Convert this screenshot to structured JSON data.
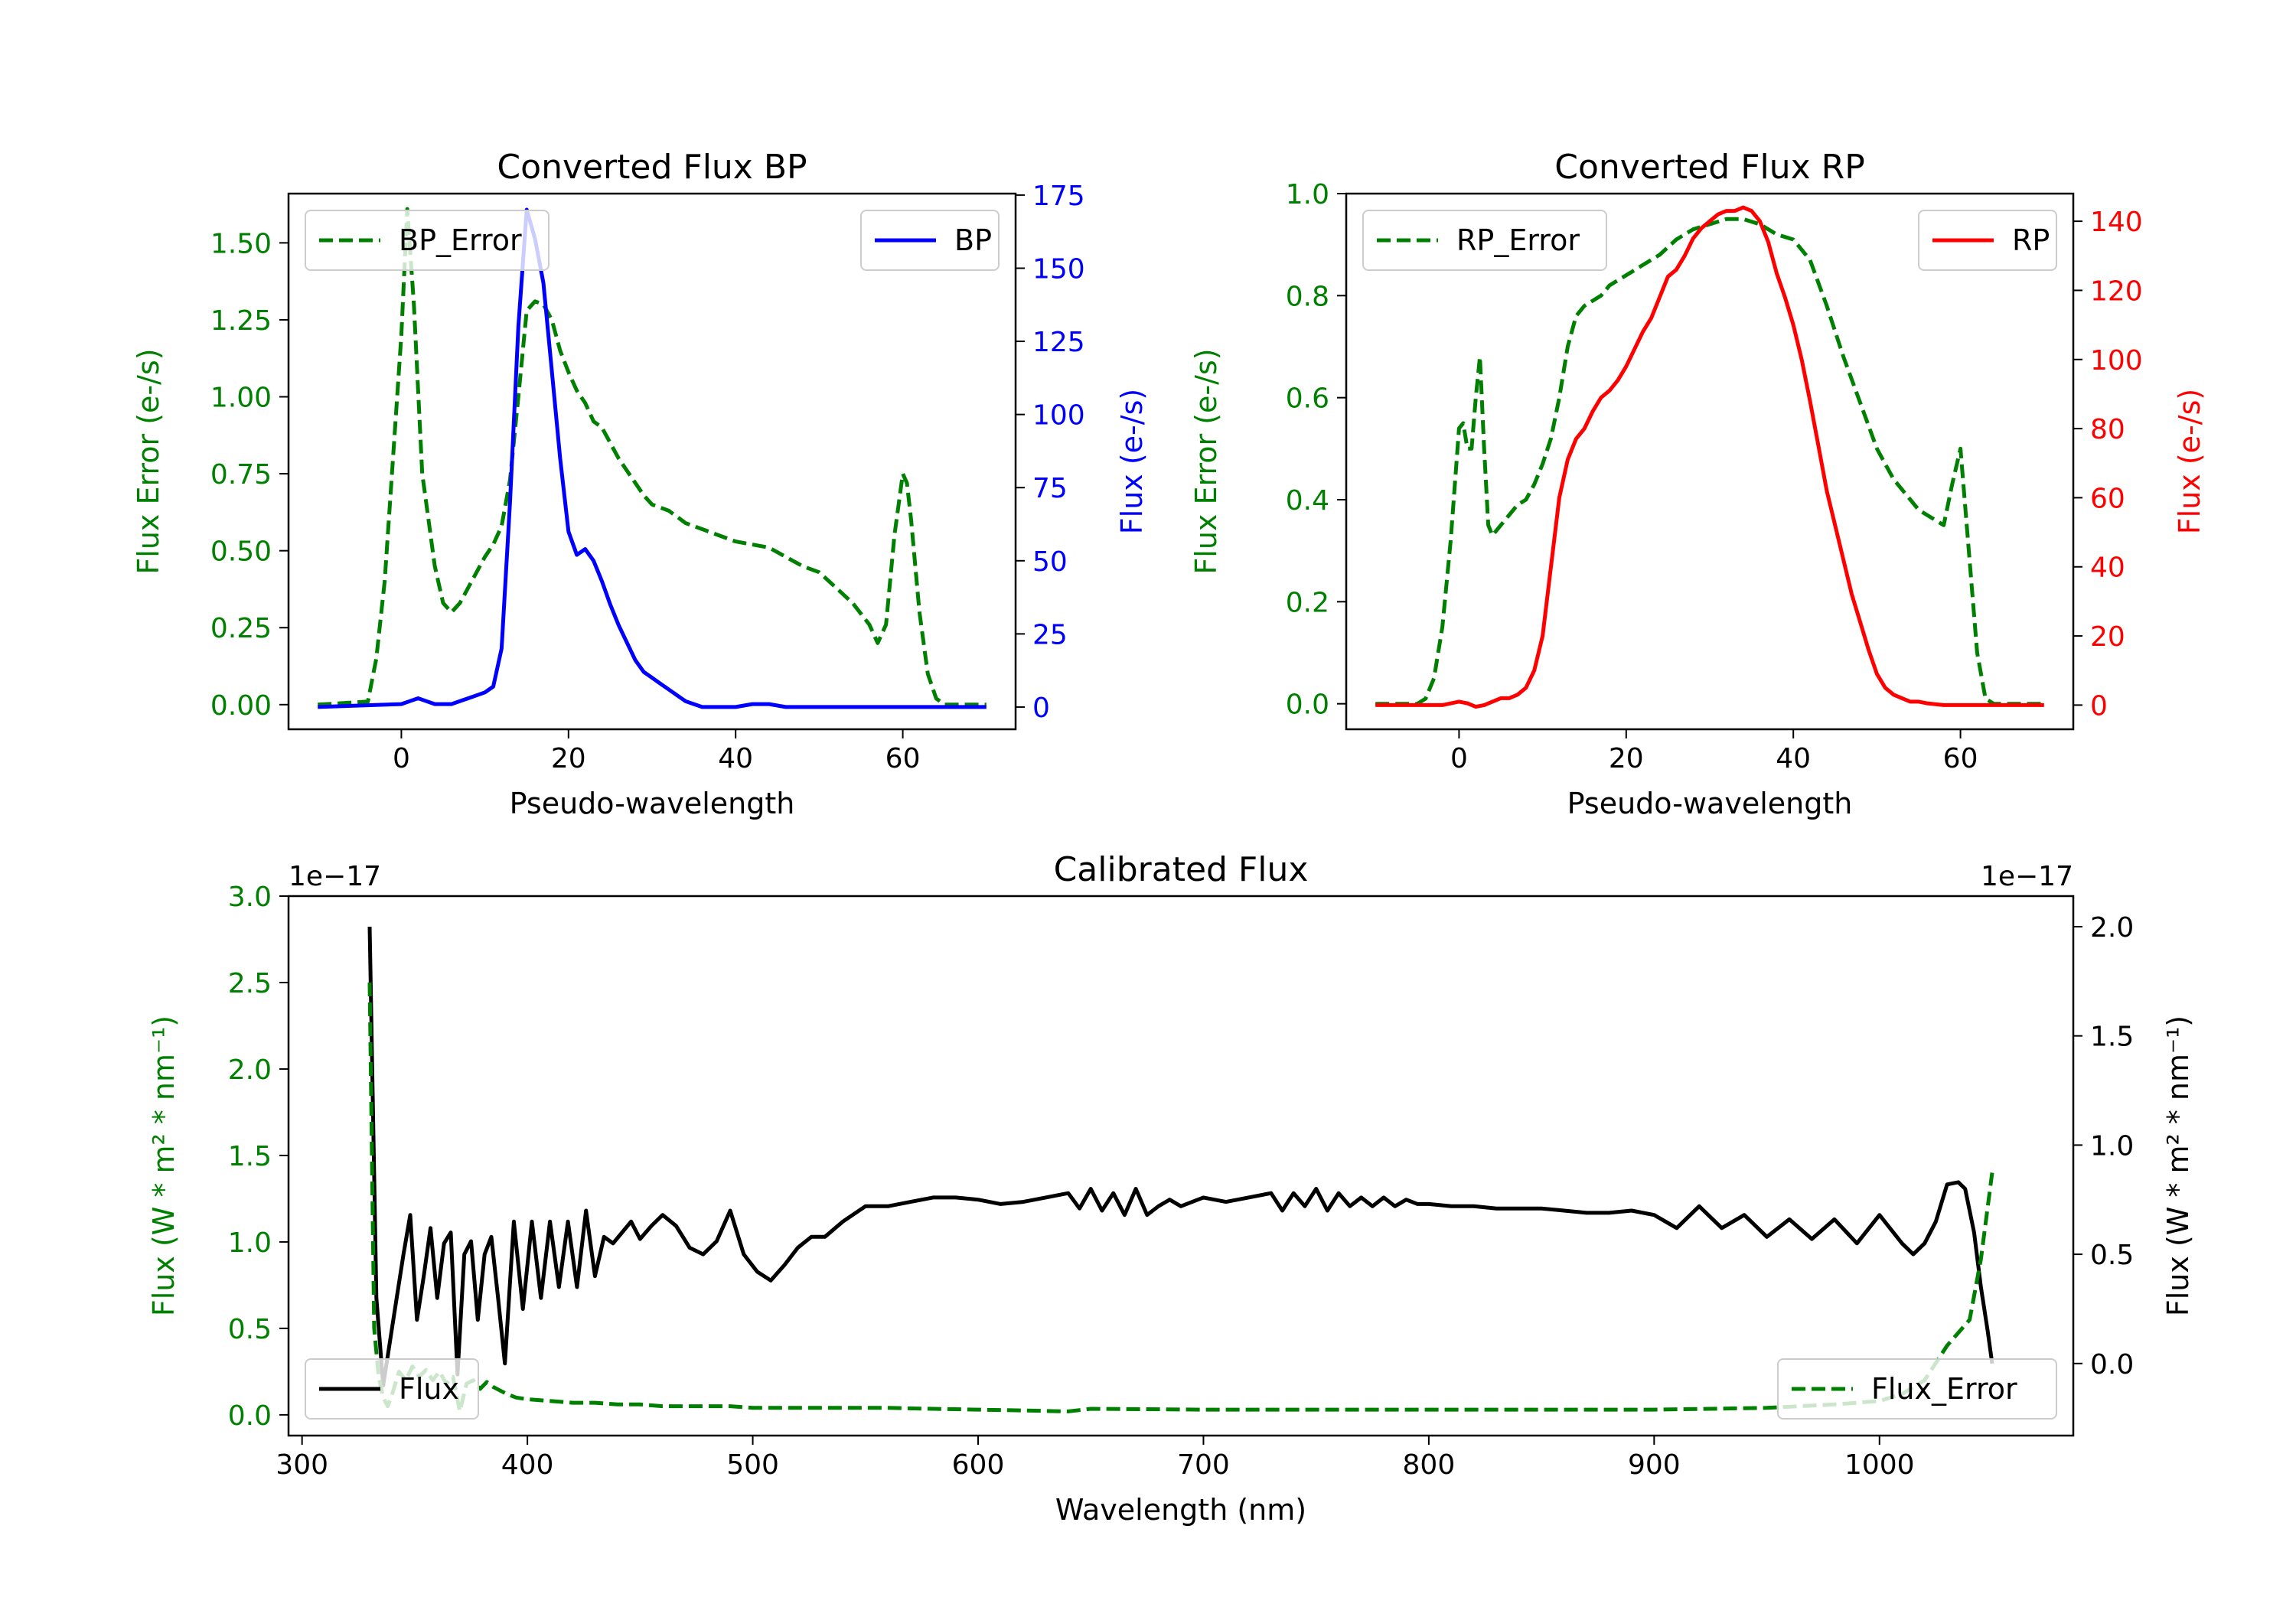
{
  "colors": {
    "error": "#008000",
    "bp": "#0000ff",
    "rp": "#ff0000",
    "flux": "#000000",
    "axis": "#000000"
  },
  "chart_data": [
    {
      "id": "bp",
      "type": "line",
      "title": "Converted Flux BP",
      "xlabel": "Pseudo-wavelength",
      "ylabel_left": "Flux Error (e-/s)",
      "ylabel_right": "Flux (e-/s)",
      "xlim": [
        -13.5,
        73.5
      ],
      "ylim_left": [
        -0.08,
        1.66
      ],
      "ylim_right": [
        -7.6,
        175.5
      ],
      "xticks": [
        0,
        20,
        40,
        60
      ],
      "xtick_labels": [
        "0",
        "20",
        "40",
        "60"
      ],
      "yticks_left": [
        0,
        0.25,
        0.5,
        0.75,
        1.0,
        1.25,
        1.5
      ],
      "ytick_labels_left": [
        "0.00",
        "0.25",
        "0.50",
        "0.75",
        "1.00",
        "1.25",
        "1.50"
      ],
      "yticks_right": [
        0,
        25,
        50,
        75,
        100,
        125,
        150,
        175
      ],
      "ytick_labels_right": [
        "0",
        "25",
        "50",
        "75",
        "100",
        "125",
        "150",
        "175"
      ],
      "series": [
        {
          "name": "BP_Error",
          "axis": "left",
          "style": "dashed",
          "color": "#008000",
          "x": [
            -10,
            -4,
            -3,
            -2,
            -1,
            0,
            0.7,
            1.5,
            2.5,
            3,
            4,
            5,
            6,
            7,
            8,
            9,
            10,
            11,
            12,
            13,
            14,
            15,
            16,
            17,
            18,
            19,
            20,
            21,
            22,
            23,
            24,
            25,
            26,
            27,
            28,
            29,
            30,
            31,
            32,
            33,
            34,
            35,
            36,
            38,
            40,
            42,
            44,
            46,
            48,
            50,
            52,
            54,
            56,
            57,
            58,
            59,
            60,
            60.5,
            61,
            62,
            63,
            64,
            65,
            70
          ],
          "values": [
            0,
            0.01,
            0.15,
            0.4,
            0.8,
            1.2,
            1.61,
            1.3,
            0.75,
            0.65,
            0.45,
            0.33,
            0.3,
            0.33,
            0.38,
            0.43,
            0.48,
            0.52,
            0.58,
            0.73,
            1.0,
            1.28,
            1.31,
            1.3,
            1.25,
            1.15,
            1.08,
            1.02,
            0.98,
            0.92,
            0.9,
            0.85,
            0.8,
            0.76,
            0.72,
            0.68,
            0.65,
            0.64,
            0.63,
            0.61,
            0.59,
            0.58,
            0.57,
            0.55,
            0.53,
            0.52,
            0.51,
            0.48,
            0.45,
            0.43,
            0.38,
            0.33,
            0.26,
            0.2,
            0.26,
            0.55,
            0.75,
            0.72,
            0.6,
            0.3,
            0.1,
            0.02,
            0.0,
            0.0
          ]
        },
        {
          "name": "BP",
          "axis": "right",
          "style": "solid",
          "color": "#0000ff",
          "x": [
            -10,
            0,
            1,
            2,
            3,
            4,
            5,
            6,
            7,
            8,
            9,
            10,
            11,
            12,
            13,
            14,
            15,
            16,
            17,
            18,
            19,
            20,
            21,
            22,
            23,
            24,
            25,
            26,
            27,
            28,
            29,
            30,
            31,
            32,
            33,
            34,
            35,
            36,
            38,
            40,
            42,
            44,
            46,
            50,
            55,
            60,
            65,
            70
          ],
          "values": [
            0,
            1,
            2,
            3,
            2,
            1,
            1,
            1,
            2,
            3,
            4,
            5,
            7,
            20,
            70,
            130,
            170,
            160,
            145,
            115,
            85,
            60,
            52,
            54,
            50,
            43,
            35,
            28,
            22,
            16,
            12,
            10,
            8,
            6,
            4,
            2,
            1,
            0,
            0,
            0,
            1,
            1,
            0,
            0,
            0,
            0,
            0,
            0
          ]
        }
      ],
      "legend": [
        {
          "label": "BP_Error",
          "placement": "upper-left"
        },
        {
          "label": "BP",
          "placement": "upper-right"
        }
      ]
    },
    {
      "id": "rp",
      "type": "line",
      "title": "Converted Flux RP",
      "xlabel": "Pseudo-wavelength",
      "ylabel_left": "Flux Error (e-/s)",
      "ylabel_right": "Flux (e-/s)",
      "xlim": [
        -13.5,
        73.5
      ],
      "ylim_left": [
        -0.05,
        1.0
      ],
      "ylim_right": [
        -7.0,
        148.0
      ],
      "xticks": [
        0,
        20,
        40,
        60
      ],
      "xtick_labels": [
        "0",
        "20",
        "40",
        "60"
      ],
      "yticks_left": [
        0,
        0.2,
        0.4,
        0.6,
        0.8,
        1.0
      ],
      "ytick_labels_left": [
        "0.0",
        "0.2",
        "0.4",
        "0.6",
        "0.8",
        "1.0"
      ],
      "yticks_right": [
        0,
        20,
        40,
        60,
        80,
        100,
        120,
        140
      ],
      "ytick_labels_right": [
        "0",
        "20",
        "40",
        "60",
        "80",
        "100",
        "120",
        "140"
      ],
      "series": [
        {
          "name": "RP_Error",
          "axis": "left",
          "style": "dashed",
          "color": "#008000",
          "x": [
            -10,
            -5,
            -4,
            -3,
            -2,
            -1,
            0,
            0.5,
            1,
            1.5,
            2,
            2.5,
            3,
            3.5,
            4,
            5,
            6,
            7,
            8,
            9,
            10,
            11,
            12,
            13,
            14,
            15,
            16,
            17,
            18,
            19,
            20,
            22,
            24,
            26,
            28,
            30,
            32,
            34,
            36,
            38,
            40,
            42,
            44,
            46,
            48,
            50,
            52,
            54,
            55,
            56,
            57,
            58,
            59,
            60,
            61,
            62,
            63,
            64,
            65,
            70
          ],
          "values": [
            0,
            0,
            0.01,
            0.05,
            0.15,
            0.32,
            0.54,
            0.55,
            0.5,
            0.5,
            0.6,
            0.68,
            0.5,
            0.35,
            0.33,
            0.35,
            0.37,
            0.39,
            0.4,
            0.43,
            0.47,
            0.52,
            0.6,
            0.7,
            0.76,
            0.78,
            0.79,
            0.8,
            0.82,
            0.83,
            0.84,
            0.86,
            0.88,
            0.91,
            0.93,
            0.94,
            0.95,
            0.95,
            0.94,
            0.92,
            0.91,
            0.87,
            0.78,
            0.68,
            0.59,
            0.5,
            0.44,
            0.4,
            0.38,
            0.37,
            0.36,
            0.35,
            0.43,
            0.5,
            0.3,
            0.1,
            0.01,
            0.0,
            0.0,
            0.0
          ]
        },
        {
          "name": "RP",
          "axis": "right",
          "style": "solid",
          "color": "#ff0000",
          "x": [
            -10,
            -2,
            0,
            1,
            2,
            3,
            4,
            5,
            6,
            7,
            8,
            9,
            10,
            11,
            12,
            13,
            14,
            15,
            16,
            17,
            18,
            19,
            20,
            21,
            22,
            23,
            24,
            25,
            26,
            27,
            28,
            29,
            30,
            31,
            32,
            33,
            34,
            35,
            36,
            37,
            38,
            39,
            40,
            41,
            42,
            43,
            44,
            45,
            46,
            47,
            48,
            49,
            50,
            51,
            52,
            53,
            54,
            55,
            56,
            58,
            60,
            62,
            65,
            70
          ],
          "values": [
            0,
            0,
            1,
            0.5,
            -0.5,
            0,
            1,
            2,
            2,
            3,
            5,
            10,
            20,
            40,
            60,
            71,
            77,
            80,
            85,
            89,
            91,
            94,
            98,
            103,
            108,
            112,
            118,
            124,
            126,
            130,
            135,
            138,
            140,
            142,
            143,
            143,
            144,
            143,
            140,
            134,
            125,
            118,
            110,
            100,
            88,
            75,
            62,
            52,
            42,
            32,
            24,
            16,
            9,
            5,
            3,
            2,
            1,
            1,
            0.5,
            0,
            0,
            0,
            0,
            0
          ]
        }
      ],
      "legend": [
        {
          "label": "RP_Error",
          "placement": "upper-left"
        },
        {
          "label": "RP",
          "placement": "upper-right"
        }
      ]
    },
    {
      "id": "calibrated",
      "type": "line",
      "title": "Calibrated Flux",
      "xlabel": "Wavelength (nm)",
      "ylabel_left": "Flux (W * m² * nm⁻¹)",
      "ylabel_right": "Flux (W * m² * nm⁻¹)",
      "offset_left": "1e−17",
      "offset_right": "1e−17",
      "xlim": [
        294,
        1086
      ],
      "ylim_left": [
        -0.12,
        3.0
      ],
      "ylim_right": [
        -0.33,
        2.14
      ],
      "xticks": [
        300,
        400,
        500,
        600,
        700,
        800,
        900,
        1000
      ],
      "xtick_labels": [
        "300",
        "400",
        "500",
        "600",
        "700",
        "800",
        "900",
        "1000"
      ],
      "yticks_left": [
        0,
        0.5,
        1.0,
        1.5,
        2.0,
        2.5,
        3.0
      ],
      "ytick_labels_left": [
        "0.0",
        "0.5",
        "1.0",
        "1.5",
        "2.0",
        "2.5",
        "3.0"
      ],
      "yticks_right": [
        0,
        0.5,
        1.0,
        1.5,
        2.0
      ],
      "ytick_labels_right": [
        "0.0",
        "0.5",
        "1.0",
        "1.5",
        "2.0"
      ],
      "series": [
        {
          "name": "Flux",
          "axis": "right",
          "style": "solid",
          "color": "#000000",
          "x": [
            330,
            333,
            336,
            339,
            342,
            345,
            348,
            351,
            354,
            357,
            360,
            363,
            366,
            369,
            372,
            375,
            378,
            381,
            384,
            387,
            390,
            394,
            398,
            402,
            406,
            410,
            414,
            418,
            422,
            426,
            430,
            434,
            438,
            442,
            446,
            450,
            455,
            460,
            466,
            472,
            478,
            484,
            490,
            496,
            502,
            508,
            514,
            520,
            526,
            532,
            540,
            550,
            560,
            570,
            580,
            590,
            600,
            610,
            620,
            630,
            640,
            645,
            650,
            655,
            660,
            665,
            670,
            675,
            680,
            685,
            690,
            695,
            700,
            710,
            720,
            730,
            735,
            740,
            745,
            750,
            755,
            760,
            765,
            770,
            775,
            780,
            785,
            790,
            795,
            800,
            810,
            820,
            830,
            840,
            850,
            860,
            870,
            880,
            890,
            900,
            910,
            920,
            930,
            940,
            950,
            960,
            970,
            980,
            990,
            1000,
            1010,
            1015,
            1020,
            1025,
            1030,
            1035,
            1038,
            1042,
            1045,
            1048,
            1050
          ],
          "values": [
            2.0,
            0.3,
            -0.1,
            0.1,
            0.3,
            0.5,
            0.68,
            0.2,
            0.4,
            0.62,
            0.3,
            0.55,
            0.6,
            -0.05,
            0.5,
            0.56,
            0.2,
            0.5,
            0.58,
            0.3,
            0.0,
            0.65,
            0.25,
            0.65,
            0.3,
            0.65,
            0.35,
            0.65,
            0.35,
            0.7,
            0.4,
            0.58,
            0.55,
            0.6,
            0.65,
            0.57,
            0.63,
            0.68,
            0.63,
            0.53,
            0.5,
            0.56,
            0.7,
            0.5,
            0.42,
            0.38,
            0.45,
            0.53,
            0.58,
            0.58,
            0.65,
            0.72,
            0.72,
            0.74,
            0.76,
            0.76,
            0.75,
            0.73,
            0.74,
            0.76,
            0.78,
            0.71,
            0.8,
            0.7,
            0.78,
            0.68,
            0.8,
            0.68,
            0.72,
            0.75,
            0.72,
            0.74,
            0.76,
            0.74,
            0.76,
            0.78,
            0.7,
            0.78,
            0.72,
            0.8,
            0.7,
            0.78,
            0.72,
            0.76,
            0.72,
            0.76,
            0.72,
            0.75,
            0.73,
            0.73,
            0.72,
            0.72,
            0.71,
            0.71,
            0.71,
            0.7,
            0.69,
            0.69,
            0.7,
            0.68,
            0.62,
            0.72,
            0.62,
            0.68,
            0.58,
            0.66,
            0.57,
            0.66,
            0.55,
            0.68,
            0.55,
            0.5,
            0.55,
            0.65,
            0.82,
            0.83,
            0.8,
            0.6,
            0.35,
            0.15,
            0.0
          ]
        },
        {
          "name": "Flux_Error",
          "axis": "left",
          "style": "dashed",
          "color": "#008000",
          "x": [
            330,
            332,
            334,
            336,
            338,
            340,
            343,
            346,
            349,
            352,
            355,
            358,
            361,
            364,
            367,
            370,
            373,
            376,
            379,
            382,
            385,
            388,
            391,
            395,
            400,
            410,
            420,
            430,
            440,
            450,
            460,
            470,
            480,
            490,
            500,
            520,
            540,
            560,
            580,
            600,
            620,
            640,
            650,
            700,
            800,
            900,
            950,
            980,
            1000,
            1010,
            1020,
            1030,
            1040,
            1045,
            1050
          ],
          "values": [
            2.5,
            0.5,
            0.22,
            0.1,
            0.05,
            0.12,
            0.25,
            0.2,
            0.28,
            0.22,
            0.26,
            0.2,
            0.25,
            0.18,
            0.22,
            0.02,
            0.18,
            0.2,
            0.15,
            0.19,
            0.16,
            0.14,
            0.12,
            0.1,
            0.09,
            0.08,
            0.07,
            0.07,
            0.06,
            0.06,
            0.05,
            0.05,
            0.05,
            0.05,
            0.04,
            0.04,
            0.04,
            0.04,
            0.035,
            0.03,
            0.025,
            0.02,
            0.035,
            0.03,
            0.03,
            0.03,
            0.04,
            0.06,
            0.08,
            0.12,
            0.2,
            0.4,
            0.55,
            0.9,
            1.4
          ]
        }
      ],
      "legend": [
        {
          "label": "Flux",
          "placement": "lower-left"
        },
        {
          "label": "Flux_Error",
          "placement": "lower-right"
        }
      ]
    }
  ]
}
